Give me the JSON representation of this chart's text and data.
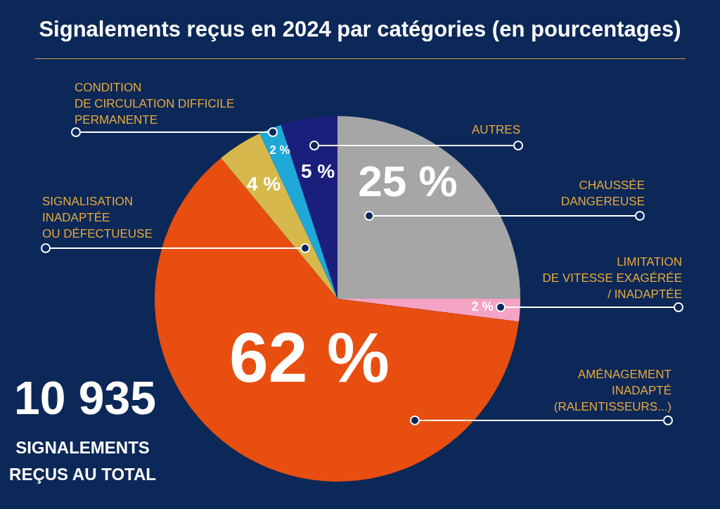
{
  "chart_data": {
    "type": "pie",
    "title": "Signalements reçus en 2024 par catégories (en pourcentages)",
    "categories": [
      "CHAUSSÉE\nDANGEREUSE",
      "LIMITATION\nDE VITESSE EXAGÉRÉE\n/ INADAPTÉE",
      "AMÉNAGEMENT\nINADAPTÉ\n(RALENTISSEURS...)",
      "SIGNALISATION\nINADAPTÉE\nOU DÉFECTUEUSE",
      "CONDITION\nDE CIRCULATION DIFFICILE\nPERMANENTE",
      "AUTRES"
    ],
    "values": [
      25,
      2,
      62,
      4,
      2,
      5
    ],
    "value_labels": [
      "25 %",
      "2 %",
      "62 %",
      "4 %",
      "2 %",
      "5 %"
    ],
    "colors": [
      "#a6a6a6",
      "#f4a3c3",
      "#e84e0f",
      "#d6b84c",
      "#1ea9d8",
      "#1b1f7c"
    ],
    "legend": false,
    "annotations": [
      "10 935",
      "SIGNALEMENTS\nREÇUS AU TOTAL"
    ]
  }
}
